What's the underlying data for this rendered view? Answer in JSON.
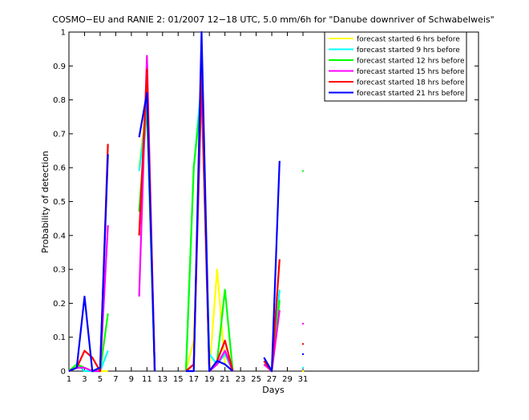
{
  "chart_data": {
    "type": "line",
    "title": "COSMO−EU and RANIE 2: 01/2007 12−18 UTC, 5.0 mm/6h for \"Danube downriver of Schwabelweis\"",
    "xlabel": "Days",
    "ylabel": "Probability of detection",
    "x": [
      1,
      2,
      3,
      4,
      5,
      6,
      7,
      8,
      9,
      10,
      11,
      12,
      13,
      14,
      15,
      16,
      17,
      18,
      19,
      20,
      21,
      22,
      23,
      24,
      25,
      26,
      27,
      28,
      29,
      30,
      31
    ],
    "xlim": [
      1,
      53.5
    ],
    "xticks": [
      1,
      3,
      5,
      7,
      9,
      11,
      13,
      15,
      17,
      19,
      21,
      23,
      25,
      27,
      29,
      31
    ],
    "ylim": [
      0,
      1
    ],
    "yticks": [
      0,
      0.1,
      0.2,
      0.3,
      0.4,
      0.5,
      0.6,
      0.7,
      0.8,
      0.9,
      1
    ],
    "legend": "upper right",
    "series": [
      {
        "name": "forecast started 6 hrs before",
        "color": "#ffff00",
        "values": [
          0,
          0.01,
          0.01,
          0,
          0,
          0,
          null,
          null,
          null,
          0.6,
          0.8,
          0,
          null,
          null,
          null,
          0,
          0.09,
          0.82,
          0,
          0.3,
          0.02,
          0,
          null,
          null,
          null,
          0.02,
          0,
          0.18,
          null,
          null,
          0
        ]
      },
      {
        "name": "forecast started 9 hrs before",
        "color": "#00ffff",
        "values": [
          0,
          0.02,
          0,
          0,
          0,
          0.06,
          null,
          null,
          null,
          0.59,
          0.78,
          0,
          null,
          null,
          null,
          0,
          0.6,
          0.85,
          0.05,
          0.02,
          0.05,
          0,
          null,
          null,
          null,
          0.03,
          0,
          0.24,
          null,
          null,
          0.01
        ]
      },
      {
        "name": "forecast started 12 hrs before",
        "color": "#00ff00",
        "values": [
          0,
          0.02,
          0.01,
          0,
          0,
          0.17,
          null,
          null,
          null,
          0.47,
          0.78,
          0,
          null,
          null,
          null,
          0,
          0.6,
          0.82,
          0,
          0.03,
          0.24,
          0,
          null,
          null,
          null,
          0.02,
          0,
          0.21,
          null,
          null,
          0.59
        ]
      },
      {
        "name": "forecast started 15 hrs before",
        "color": "#ff00ff",
        "values": [
          0,
          0.01,
          0.01,
          0,
          0,
          0.43,
          null,
          null,
          null,
          0.22,
          0.93,
          0,
          null,
          null,
          null,
          0,
          0.02,
          0.85,
          0,
          0.02,
          0.06,
          0,
          null,
          null,
          null,
          0.02,
          0,
          0.18,
          null,
          null,
          0.14
        ]
      },
      {
        "name": "forecast started 18 hrs before",
        "color": "#ff0000",
        "values": [
          0,
          0.01,
          0.06,
          0.04,
          0,
          0.67,
          null,
          null,
          null,
          0.4,
          0.89,
          0,
          null,
          null,
          null,
          0,
          0.02,
          0.9,
          0,
          0.03,
          0.09,
          0,
          null,
          null,
          null,
          0.03,
          0,
          0.33,
          null,
          null,
          0.08
        ]
      },
      {
        "name": "forecast started 21 hrs before",
        "color": "#0000ff",
        "values": [
          0,
          0.01,
          0.22,
          0,
          0.01,
          0.64,
          null,
          null,
          null,
          0.69,
          0.82,
          0,
          null,
          null,
          null,
          0,
          0,
          1,
          0,
          0.03,
          0.02,
          0,
          null,
          null,
          null,
          0.04,
          0,
          0.62,
          null,
          null,
          0.05
        ]
      }
    ]
  }
}
